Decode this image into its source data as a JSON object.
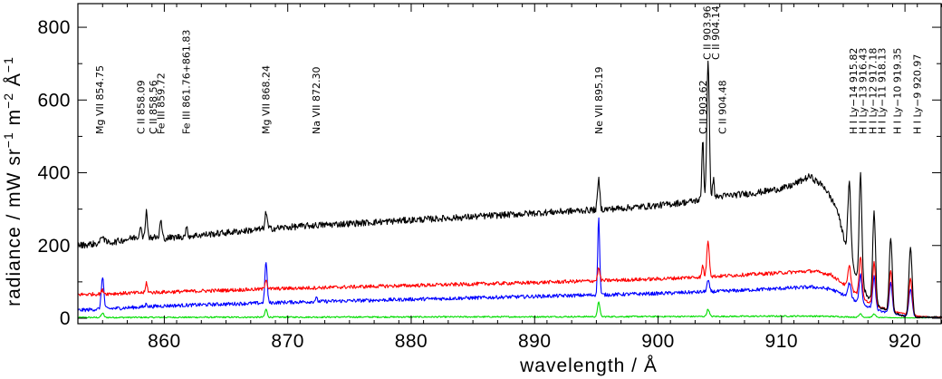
{
  "chart_data": {
    "type": "line",
    "title": "",
    "xlabel": "wavelength / Å",
    "ylabel_parts": {
      "main": "radiance / mW sr",
      "e1": "−1",
      "m": " m",
      "e2": "−2",
      "a": " Å",
      "e3": "−1"
    },
    "xlim": [
      853,
      923
    ],
    "ylim": [
      -15,
      865
    ],
    "xticks": [
      860,
      870,
      880,
      890,
      900,
      910,
      920
    ],
    "yticks": [
      0,
      200,
      400,
      600,
      800
    ],
    "grid": false,
    "legend": "none",
    "line_labels": [
      {
        "x": 854.75,
        "text": "Mg VII 854.75"
      },
      {
        "x": 858.09,
        "text": "C II 858.09"
      },
      {
        "x": 858.56,
        "text": "C II 858.56"
      },
      {
        "x": 859.72,
        "text": "Fe III 859.72"
      },
      {
        "x": 861.76,
        "text": "Fe III 861.76+861.83"
      },
      {
        "x": 868.24,
        "text": "Mg VII 868.24"
      },
      {
        "x": 872.3,
        "text": "Na VII 872.30"
      },
      {
        "x": 895.19,
        "text": "Ne VII 895.19"
      },
      {
        "x": 903.62,
        "text": "C II 903.62"
      },
      {
        "x": 903.96,
        "text": "C II 903.96"
      },
      {
        "x": 904.14,
        "text": "C II 904.14"
      },
      {
        "x": 904.48,
        "text": "C II 904.48"
      },
      {
        "x": 915.82,
        "text": "H I Ly−14 915.82"
      },
      {
        "x": 916.43,
        "text": "H I Ly−13 916.43"
      },
      {
        "x": 917.18,
        "text": "H I Ly−12 917.18"
      },
      {
        "x": 918.13,
        "text": "H I Ly−11 918.13"
      },
      {
        "x": 919.35,
        "text": "H I Ly−10 919.35"
      },
      {
        "x": 920.97,
        "text": "H I Ly−9 920.97"
      }
    ],
    "series": [
      {
        "color": "#000000",
        "x": [
          853.0,
          856.0,
          858.0,
          860.0,
          864.0,
          868.0,
          872.0,
          876.0,
          880.0,
          884.0,
          888.0,
          892.0,
          896.0,
          900.0,
          902.5,
          905.0,
          908.0,
          910.5,
          912.3,
          913.5,
          914.5,
          915.2,
          916.0,
          917.0,
          918.0,
          919.0,
          920.0,
          921.0,
          922.0,
          923.0
        ],
        "y": [
          200,
          210,
          225,
          220,
          232,
          245,
          255,
          262,
          270,
          277,
          285,
          293,
          300,
          310,
          320,
          335,
          345,
          360,
          390,
          360,
          300,
          200,
          120,
          60,
          30,
          15,
          5,
          3,
          3,
          3
        ],
        "peaks": [
          {
            "x": 855.0,
            "h": 22,
            "w": 0.12
          },
          {
            "x": 858.09,
            "h": 35,
            "w": 0.07
          },
          {
            "x": 858.56,
            "h": 80,
            "w": 0.07
          },
          {
            "x": 859.72,
            "h": 48,
            "w": 0.08
          },
          {
            "x": 861.8,
            "h": 22,
            "w": 0.08
          },
          {
            "x": 868.24,
            "h": 45,
            "w": 0.09
          },
          {
            "x": 895.19,
            "h": 82,
            "w": 0.09
          },
          {
            "x": 903.62,
            "h": 170,
            "w": 0.07
          },
          {
            "x": 904.05,
            "h": 375,
            "w": 0.1
          },
          {
            "x": 904.48,
            "h": 50,
            "w": 0.07
          },
          {
            "x": 915.5,
            "h": 200,
            "w": 0.12
          },
          {
            "x": 916.4,
            "h": 300,
            "w": 0.11
          },
          {
            "x": 917.5,
            "h": 250,
            "w": 0.11
          },
          {
            "x": 918.85,
            "h": 205,
            "w": 0.12
          },
          {
            "x": 920.45,
            "h": 190,
            "w": 0.13
          }
        ]
      },
      {
        "color": "#ff0000",
        "x": [
          853.0,
          860.0,
          870.0,
          880.0,
          890.0,
          900.0,
          905.0,
          910.0,
          912.5,
          914.0,
          915.0,
          916.0,
          917.0,
          918.0,
          919.0,
          920.0,
          921.0,
          922.0,
          923.0
        ],
        "y": [
          65,
          72,
          82,
          90,
          98,
          108,
          116,
          125,
          130,
          120,
          95,
          70,
          45,
          30,
          20,
          12,
          6,
          3,
          3
        ],
        "peaks": [
          {
            "x": 855.0,
            "h": 10,
            "w": 0.1
          },
          {
            "x": 858.56,
            "h": 28,
            "w": 0.07
          },
          {
            "x": 868.24,
            "h": 28,
            "w": 0.09
          },
          {
            "x": 895.19,
            "h": 35,
            "w": 0.09
          },
          {
            "x": 903.62,
            "h": 32,
            "w": 0.07
          },
          {
            "x": 904.05,
            "h": 100,
            "w": 0.1
          },
          {
            "x": 915.5,
            "h": 60,
            "w": 0.12
          },
          {
            "x": 916.4,
            "h": 110,
            "w": 0.11
          },
          {
            "x": 917.5,
            "h": 120,
            "w": 0.11
          },
          {
            "x": 918.85,
            "h": 110,
            "w": 0.12
          },
          {
            "x": 920.45,
            "h": 100,
            "w": 0.13
          }
        ]
      },
      {
        "color": "#0000ff",
        "x": [
          853.0,
          860.0,
          870.0,
          880.0,
          890.0,
          900.0,
          905.0,
          910.0,
          912.5,
          914.0,
          915.0,
          916.0,
          917.0,
          918.0,
          919.0,
          920.0,
          921.0,
          922.0,
          923.0
        ],
        "y": [
          22,
          34,
          44,
          52,
          60,
          68,
          74,
          82,
          86,
          80,
          65,
          48,
          32,
          20,
          12,
          7,
          3,
          2,
          2
        ],
        "peaks": [
          {
            "x": 855.0,
            "h": 90,
            "w": 0.1
          },
          {
            "x": 858.56,
            "h": 10,
            "w": 0.07
          },
          {
            "x": 868.24,
            "h": 115,
            "w": 0.09
          },
          {
            "x": 872.3,
            "h": 10,
            "w": 0.08
          },
          {
            "x": 895.19,
            "h": 210,
            "w": 0.08
          },
          {
            "x": 904.05,
            "h": 30,
            "w": 0.1
          },
          {
            "x": 915.5,
            "h": 40,
            "w": 0.12
          },
          {
            "x": 916.4,
            "h": 80,
            "w": 0.11
          },
          {
            "x": 917.5,
            "h": 90,
            "w": 0.11
          },
          {
            "x": 918.85,
            "h": 85,
            "w": 0.12
          },
          {
            "x": 920.45,
            "h": 75,
            "w": 0.13
          }
        ]
      },
      {
        "color": "#00dd00",
        "x": [
          853.0,
          870.0,
          890.0,
          905.0,
          912.0,
          914.0,
          916.0,
          918.0,
          920.0,
          923.0
        ],
        "y": [
          2,
          3,
          4,
          5,
          6,
          5,
          3,
          2,
          1,
          1
        ],
        "peaks": [
          {
            "x": 855.0,
            "h": 12,
            "w": 0.1
          },
          {
            "x": 868.24,
            "h": 22,
            "w": 0.09
          },
          {
            "x": 895.19,
            "h": 42,
            "w": 0.09
          },
          {
            "x": 904.05,
            "h": 20,
            "w": 0.1
          },
          {
            "x": 916.4,
            "h": 10,
            "w": 0.11
          },
          {
            "x": 917.5,
            "h": 10,
            "w": 0.11
          }
        ]
      }
    ]
  }
}
